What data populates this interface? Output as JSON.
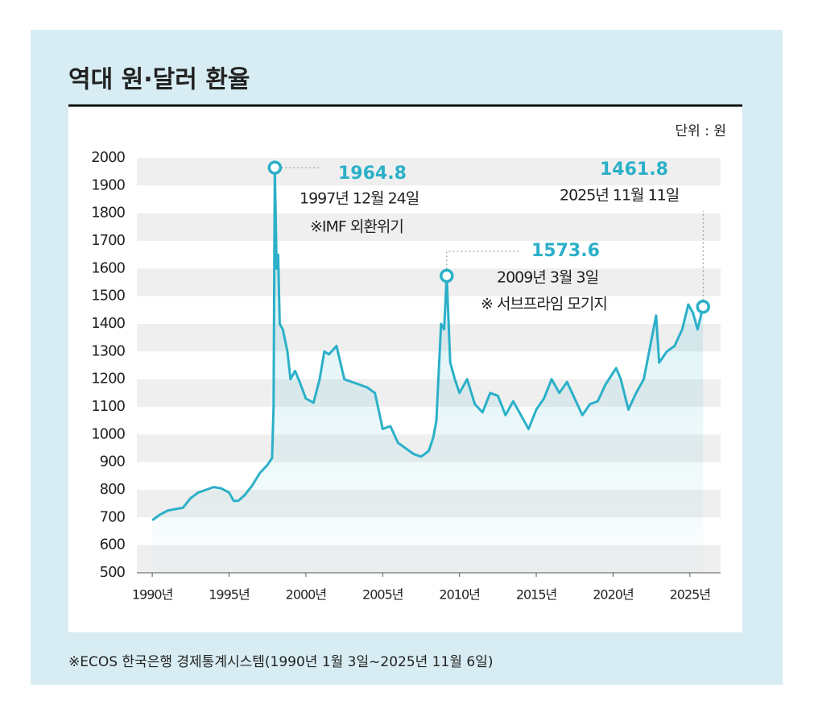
{
  "chart_data": {
    "type": "line",
    "title": "역대 원·달러 환율",
    "unit": "단위 : 원",
    "source": "※ECOS 한국은행 경제통계시스템(1990년 1월 3일~2025년 11월 6일)",
    "color": "#2bb0c8",
    "xlim": [
      1989,
      2027
    ],
    "ylim": [
      500,
      2000
    ],
    "yticks": [
      500,
      600,
      700,
      800,
      900,
      1000,
      1100,
      1200,
      1300,
      1400,
      1500,
      1600,
      1700,
      1800,
      1900,
      2000
    ],
    "xticks": [
      {
        "value": 1990,
        "label": "1990년"
      },
      {
        "value": 1995,
        "label": "1995년"
      },
      {
        "value": 2000,
        "label": "2000년"
      },
      {
        "value": 2005,
        "label": "2005년"
      },
      {
        "value": 2010,
        "label": "2010년"
      },
      {
        "value": 2015,
        "label": "2015년"
      },
      {
        "value": 2020,
        "label": "2020년"
      },
      {
        "value": 2025,
        "label": "2025년"
      }
    ],
    "grid": true,
    "x": [
      1990.0,
      1990.5,
      1991.0,
      1991.5,
      1992.0,
      1992.5,
      1993.0,
      1993.5,
      1994.0,
      1994.5,
      1995.0,
      1995.3,
      1995.6,
      1996.0,
      1996.5,
      1997.0,
      1997.5,
      1997.8,
      1997.9,
      1997.98,
      1998.1,
      1998.2,
      1998.3,
      1998.5,
      1998.8,
      1999.0,
      1999.3,
      1999.6,
      2000.0,
      2000.5,
      2000.9,
      2001.2,
      2001.5,
      2002.0,
      2002.5,
      2003.0,
      2003.5,
      2004.0,
      2004.5,
      2005.0,
      2005.5,
      2006.0,
      2006.5,
      2007.0,
      2007.5,
      2008.0,
      2008.3,
      2008.5,
      2008.8,
      2009.0,
      2009.17,
      2009.4,
      2009.7,
      2010.0,
      2010.5,
      2011.0,
      2011.5,
      2012.0,
      2012.5,
      2013.0,
      2013.5,
      2014.0,
      2014.5,
      2015.0,
      2015.5,
      2016.0,
      2016.5,
      2017.0,
      2017.5,
      2018.0,
      2018.5,
      2019.0,
      2019.5,
      2020.2,
      2020.5,
      2021.0,
      2021.5,
      2022.0,
      2022.8,
      2023.0,
      2023.5,
      2024.0,
      2024.5,
      2024.9,
      2025.2,
      2025.5,
      2025.86
    ],
    "values": [
      690,
      710,
      725,
      730,
      735,
      770,
      790,
      800,
      810,
      805,
      790,
      760,
      760,
      780,
      815,
      860,
      890,
      915,
      1100,
      1964.8,
      1600,
      1650,
      1400,
      1380,
      1300,
      1200,
      1230,
      1190,
      1130,
      1115,
      1200,
      1300,
      1290,
      1320,
      1200,
      1190,
      1180,
      1170,
      1150,
      1020,
      1030,
      970,
      950,
      930,
      920,
      940,
      990,
      1050,
      1400,
      1380,
      1573.6,
      1260,
      1200,
      1150,
      1200,
      1110,
      1080,
      1150,
      1140,
      1070,
      1120,
      1070,
      1020,
      1090,
      1130,
      1200,
      1150,
      1190,
      1130,
      1070,
      1110,
      1120,
      1180,
      1240,
      1200,
      1090,
      1150,
      1200,
      1430,
      1260,
      1300,
      1320,
      1380,
      1470,
      1440,
      1380,
      1461.8
    ],
    "highlights": [
      {
        "x": 1997.98,
        "value": 1964.8,
        "date": "1997년 12월 24일",
        "note": "※IMF 외환위기"
      },
      {
        "x": 2009.17,
        "value": 1573.6,
        "date": "2009년 3월 3일",
        "note": "※ 서브프라임 모기지"
      },
      {
        "x": 2025.86,
        "value": 1461.8,
        "date": "2025년 11월 11일"
      }
    ]
  }
}
